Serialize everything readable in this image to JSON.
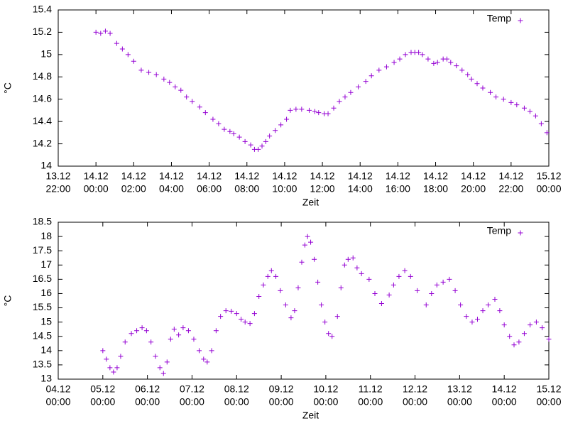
{
  "chart_data": [
    {
      "type": "scatter",
      "xlabel": "Zeit",
      "ylabel": "°C",
      "series": [
        {
          "name": "Temp",
          "color": "#9400d3",
          "x": [
            0,
            0.25,
            0.5,
            0.75,
            1.1,
            1.4,
            1.7,
            2.0,
            2.4,
            2.8,
            3.2,
            3.6,
            3.9,
            4.2,
            4.5,
            4.8,
            5.1,
            5.5,
            5.8,
            6.2,
            6.5,
            6.8,
            7.1,
            7.3,
            7.6,
            7.9,
            8.2,
            8.4,
            8.6,
            8.8,
            9.0,
            9.2,
            9.5,
            9.8,
            10.1,
            10.3,
            10.6,
            10.9,
            11.3,
            11.6,
            11.8,
            12.1,
            12.3,
            12.6,
            12.9,
            13.2,
            13.5,
            13.9,
            14.3,
            14.6,
            15.0,
            15.4,
            15.8,
            16.1,
            16.4,
            16.7,
            16.9,
            17.1,
            17.3,
            17.6,
            17.9,
            18.1,
            18.4,
            18.6,
            18.8,
            19.1,
            19.4,
            19.7,
            19.9,
            20.2,
            20.5,
            20.9,
            21.2,
            21.6,
            22.0,
            22.3,
            22.7,
            23.0,
            23.3,
            23.6,
            23.9
          ],
          "values": [
            15.2,
            15.19,
            15.21,
            15.19,
            15.1,
            15.05,
            15.0,
            14.94,
            14.86,
            14.84,
            14.82,
            14.78,
            14.75,
            14.71,
            14.68,
            14.62,
            14.58,
            14.53,
            14.48,
            14.42,
            14.38,
            14.33,
            14.31,
            14.29,
            14.26,
            14.22,
            14.19,
            14.15,
            14.15,
            14.18,
            14.22,
            14.27,
            14.32,
            14.37,
            14.42,
            14.5,
            14.51,
            14.51,
            14.5,
            14.49,
            14.48,
            14.47,
            14.47,
            14.52,
            14.58,
            14.62,
            14.66,
            14.71,
            14.76,
            14.81,
            14.86,
            14.89,
            14.93,
            14.96,
            15.0,
            15.02,
            15.02,
            15.02,
            15.0,
            14.96,
            14.92,
            14.93,
            14.96,
            14.96,
            14.93,
            14.9,
            14.86,
            14.82,
            14.78,
            14.74,
            14.7,
            14.66,
            14.62,
            14.6,
            14.57,
            14.55,
            14.52,
            14.49,
            14.45,
            14.38,
            14.3
          ]
        }
      ],
      "xlim": [
        -2,
        24
      ],
      "xticks": [
        {
          "value": -2,
          "label": [
            "13.12",
            "22:00"
          ]
        },
        {
          "value": 0,
          "label": [
            "14.12",
            "00:00"
          ]
        },
        {
          "value": 2,
          "label": [
            "14.12",
            "02:00"
          ]
        },
        {
          "value": 4,
          "label": [
            "14.12",
            "04:00"
          ]
        },
        {
          "value": 6,
          "label": [
            "14.12",
            "06:00"
          ]
        },
        {
          "value": 8,
          "label": [
            "14.12",
            "08:00"
          ]
        },
        {
          "value": 10,
          "label": [
            "14.12",
            "10:00"
          ]
        },
        {
          "value": 12,
          "label": [
            "14.12",
            "12:00"
          ]
        },
        {
          "value": 14,
          "label": [
            "14.12",
            "14:00"
          ]
        },
        {
          "value": 16,
          "label": [
            "14.12",
            "16:00"
          ]
        },
        {
          "value": 18,
          "label": [
            "14.12",
            "18:00"
          ]
        },
        {
          "value": 20,
          "label": [
            "14.12",
            "20:00"
          ]
        },
        {
          "value": 22,
          "label": [
            "14.12",
            "22:00"
          ]
        },
        {
          "value": 24,
          "label": [
            "15.12",
            "00:00"
          ]
        }
      ],
      "ylim": [
        14,
        15.4
      ],
      "yticks": [
        14,
        14.2,
        14.4,
        14.6,
        14.8,
        15,
        15.2,
        15.4
      ],
      "legend": "upper right"
    },
    {
      "type": "scatter",
      "xlabel": "Zeit",
      "ylabel": "°C",
      "series": [
        {
          "name": "Temp",
          "color": "#9400d3",
          "x": [
            1.0,
            1.08,
            1.16,
            1.24,
            1.32,
            1.4,
            1.5,
            1.64,
            1.76,
            1.88,
            1.98,
            2.08,
            2.18,
            2.28,
            2.36,
            2.44,
            2.52,
            2.6,
            2.7,
            2.8,
            2.92,
            3.04,
            3.16,
            3.26,
            3.34,
            3.44,
            3.54,
            3.64,
            3.76,
            3.88,
            4.0,
            4.1,
            4.19,
            4.3,
            4.4,
            4.5,
            4.6,
            4.7,
            4.78,
            4.88,
            4.98,
            5.1,
            5.22,
            5.3,
            5.38,
            5.46,
            5.53,
            5.59,
            5.66,
            5.74,
            5.82,
            5.9,
            5.98,
            6.06,
            6.14,
            6.26,
            6.34,
            6.42,
            6.5,
            6.61,
            6.7,
            6.8,
            6.97,
            7.1,
            7.25,
            7.42,
            7.52,
            7.64,
            7.77,
            7.9,
            8.05,
            8.25,
            8.37,
            8.49,
            8.63,
            8.77,
            8.9,
            9.02,
            9.15,
            9.28,
            9.4,
            9.52,
            9.64,
            9.79,
            9.9,
            10.0,
            10.12,
            10.22,
            10.33,
            10.45,
            10.58,
            10.72,
            10.85,
            11.0
          ],
          "values": [
            14.0,
            13.7,
            13.4,
            13.25,
            13.4,
            13.8,
            14.3,
            14.6,
            14.7,
            14.8,
            14.7,
            14.3,
            13.8,
            13.4,
            13.2,
            13.6,
            14.4,
            14.75,
            14.55,
            14.8,
            14.7,
            14.4,
            14.0,
            13.7,
            13.6,
            14.0,
            14.7,
            15.2,
            15.4,
            15.38,
            15.3,
            15.1,
            15.0,
            14.95,
            15.3,
            15.9,
            16.3,
            16.6,
            16.8,
            16.6,
            16.1,
            15.6,
            15.15,
            15.4,
            16.2,
            17.1,
            17.7,
            18.0,
            17.8,
            17.2,
            16.4,
            15.6,
            15.0,
            14.6,
            14.5,
            15.2,
            16.2,
            17.0,
            17.2,
            17.25,
            16.9,
            16.7,
            16.5,
            16.0,
            15.65,
            15.95,
            16.3,
            16.6,
            16.8,
            16.6,
            16.1,
            15.6,
            16.0,
            16.3,
            16.4,
            16.5,
            16.1,
            15.6,
            15.2,
            15.0,
            15.1,
            15.4,
            15.6,
            15.8,
            15.4,
            14.9,
            14.5,
            14.2,
            14.3,
            14.6,
            14.9,
            15.0,
            14.8,
            14.4
          ]
        }
      ],
      "xlim": [
        0,
        11
      ],
      "xticks": [
        {
          "value": 0,
          "label": [
            "04.12",
            "00:00"
          ]
        },
        {
          "value": 1,
          "label": [
            "05.12",
            "00:00"
          ]
        },
        {
          "value": 2,
          "label": [
            "06.12",
            "00:00"
          ]
        },
        {
          "value": 3,
          "label": [
            "07.12",
            "00:00"
          ]
        },
        {
          "value": 4,
          "label": [
            "08.12",
            "00:00"
          ]
        },
        {
          "value": 5,
          "label": [
            "09.12",
            "00:00"
          ]
        },
        {
          "value": 6,
          "label": [
            "10.12",
            "00:00"
          ]
        },
        {
          "value": 7,
          "label": [
            "11.12",
            "00:00"
          ]
        },
        {
          "value": 8,
          "label": [
            "12.12",
            "00:00"
          ]
        },
        {
          "value": 9,
          "label": [
            "13.12",
            "00:00"
          ]
        },
        {
          "value": 10,
          "label": [
            "14.12",
            "00:00"
          ]
        },
        {
          "value": 11,
          "label": [
            "15.12",
            "00:00"
          ]
        }
      ],
      "ylim": [
        13,
        18.5
      ],
      "yticks": [
        13,
        13.5,
        14,
        14.5,
        15,
        15.5,
        16,
        16.5,
        17,
        17.5,
        18,
        18.5
      ],
      "legend": "upper right"
    }
  ]
}
